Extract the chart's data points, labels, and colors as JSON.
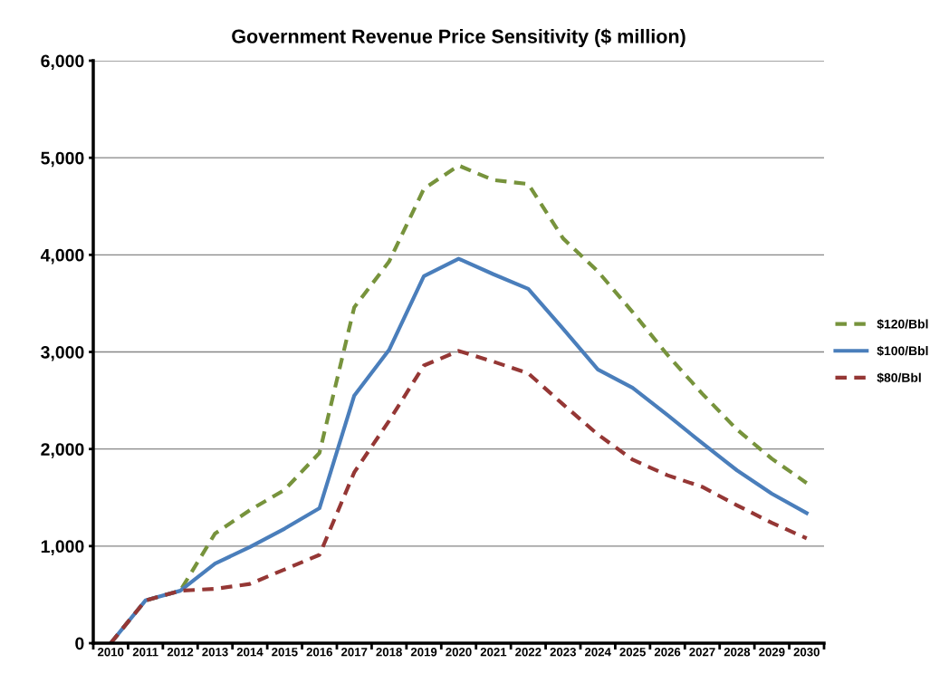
{
  "chart_data": {
    "type": "line",
    "title": "Government Revenue Price Sensitivity ($ million)",
    "categories": [
      "2010",
      "2011",
      "2012",
      "2013",
      "2014",
      "2015",
      "2016",
      "2017",
      "2018",
      "2019",
      "2020",
      "2021",
      "2022",
      "2023",
      "2024",
      "2025",
      "2026",
      "2027",
      "2028",
      "2029",
      "2030"
    ],
    "series": [
      {
        "name": "$120/Bbl",
        "color": "#77933c",
        "line_style": "dashed",
        "values": [
          0,
          440,
          540,
          1130,
          1370,
          1580,
          1960,
          3460,
          3930,
          4680,
          4920,
          4770,
          4730,
          4170,
          3830,
          3410,
          2970,
          2570,
          2200,
          1900,
          1650
        ]
      },
      {
        "name": "$100/Bbl",
        "color": "#4a7ebb",
        "line_style": "solid",
        "values": [
          0,
          440,
          540,
          820,
          990,
          1180,
          1390,
          2550,
          3020,
          3780,
          3960,
          3800,
          3650,
          3240,
          2820,
          2630,
          2350,
          2060,
          1780,
          1540,
          1340
        ]
      },
      {
        "name": "$80/Bbl",
        "color": "#953735",
        "line_style": "dashed",
        "values": [
          0,
          440,
          540,
          560,
          610,
          760,
          910,
          1760,
          2290,
          2860,
          3010,
          2900,
          2780,
          2460,
          2150,
          1890,
          1730,
          1610,
          1420,
          1240,
          1080
        ]
      }
    ],
    "ylim": [
      0,
      6000
    ],
    "yticks": [
      {
        "value": 0,
        "label": "0"
      },
      {
        "value": 1000,
        "label": "1,000"
      },
      {
        "value": 2000,
        "label": "2,000"
      },
      {
        "value": 3000,
        "label": "3,000"
      },
      {
        "value": 4000,
        "label": "4,000"
      },
      {
        "value": 5000,
        "label": "5,000"
      },
      {
        "value": 6000,
        "label": "6,000"
      }
    ],
    "grid": "y",
    "legend": "right",
    "marker": "none"
  }
}
